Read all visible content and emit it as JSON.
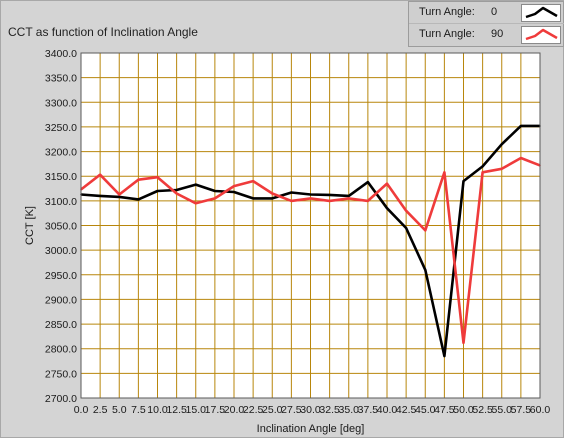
{
  "chart_data": {
    "type": "line",
    "title": "CCT as function of Inclination Angle",
    "xlabel": "Inclination Angle [deg]",
    "ylabel": "CCT [K]",
    "xlim": [
      0,
      60
    ],
    "ylim": [
      2700,
      3400
    ],
    "x_ticks": [
      "0.0",
      "2.5",
      "5.0",
      "7.5",
      "10.0",
      "12.5",
      "15.0",
      "17.5",
      "20.0",
      "22.5",
      "25.0",
      "27.5",
      "30.0",
      "32.5",
      "35.0",
      "37.5",
      "40.0",
      "42.5",
      "45.0",
      "47.5",
      "50.0",
      "52.5",
      "55.0",
      "57.5",
      "60.0"
    ],
    "x_tick_values": [
      0,
      2.5,
      5,
      7.5,
      10,
      12.5,
      15,
      17.5,
      20,
      22.5,
      25,
      27.5,
      30,
      32.5,
      35,
      37.5,
      40,
      42.5,
      45,
      47.5,
      50,
      52.5,
      55,
      57.5,
      60
    ],
    "y_ticks": [
      "2700.0",
      "2750.0",
      "2800.0",
      "2850.0",
      "2900.0",
      "2950.0",
      "3000.0",
      "3050.0",
      "3100.0",
      "3150.0",
      "3200.0",
      "3250.0",
      "3300.0",
      "3350.0",
      "3400.0"
    ],
    "y_tick_values": [
      2700,
      2750,
      2800,
      2850,
      2900,
      2950,
      3000,
      3050,
      3100,
      3150,
      3200,
      3250,
      3300,
      3350,
      3400
    ],
    "grid": true,
    "legend_position": "top-right",
    "x": [
      0,
      2.5,
      5,
      7.5,
      10,
      12.5,
      15,
      17.5,
      20,
      22.5,
      25,
      27.5,
      30,
      32.5,
      35,
      37.5,
      40,
      42.5,
      45,
      47.5,
      50,
      52.5,
      55,
      57.5,
      60
    ],
    "series": [
      {
        "legend_label": "Turn Angle:",
        "legend_value": "0",
        "color": "#000000",
        "values": [
          3113,
          3110,
          3108,
          3103,
          3120,
          3122,
          3133,
          3120,
          3118,
          3105,
          3105,
          3117,
          3113,
          3112,
          3110,
          3138,
          3085,
          3045,
          2960,
          2785,
          3140,
          3170,
          3215,
          3252,
          3252
        ]
      },
      {
        "legend_label": "Turn Angle:",
        "legend_value": "90",
        "color": "#ef3b3b",
        "values": [
          3123,
          3153,
          3113,
          3143,
          3148,
          3115,
          3095,
          3105,
          3130,
          3140,
          3115,
          3100,
          3105,
          3100,
          3105,
          3100,
          3135,
          3080,
          3040,
          3158,
          2812,
          3158,
          3165,
          3187,
          3172
        ]
      }
    ],
    "colors": {
      "plot_background": "#ffffff",
      "grid": "#b8860b",
      "panel_background": "#d4d4d4"
    }
  }
}
